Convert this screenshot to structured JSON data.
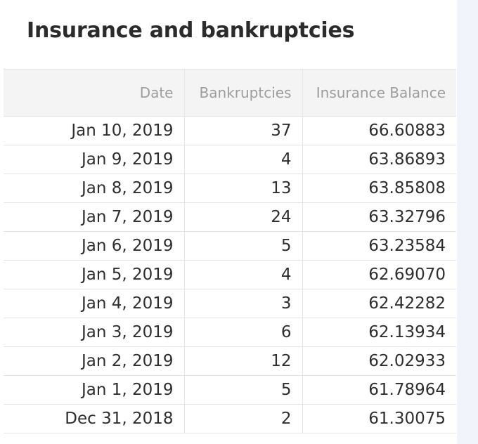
{
  "title": "Insurance and bankruptcies",
  "table": {
    "headers": [
      "Date",
      "Bankruptcies",
      "Insurance Balance"
    ],
    "rows": [
      {
        "date": "Jan 10, 2019",
        "bankruptcies": "37",
        "insurance_balance": "66.60883"
      },
      {
        "date": "Jan 9, 2019",
        "bankruptcies": "4",
        "insurance_balance": "63.86893"
      },
      {
        "date": "Jan 8, 2019",
        "bankruptcies": "13",
        "insurance_balance": "63.85808"
      },
      {
        "date": "Jan 7, 2019",
        "bankruptcies": "24",
        "insurance_balance": "63.32796"
      },
      {
        "date": "Jan 6, 2019",
        "bankruptcies": "5",
        "insurance_balance": "63.23584"
      },
      {
        "date": "Jan 5, 2019",
        "bankruptcies": "4",
        "insurance_balance": "62.69070"
      },
      {
        "date": "Jan 4, 2019",
        "bankruptcies": "3",
        "insurance_balance": "62.42282"
      },
      {
        "date": "Jan 3, 2019",
        "bankruptcies": "6",
        "insurance_balance": "62.13934"
      },
      {
        "date": "Jan 2, 2019",
        "bankruptcies": "12",
        "insurance_balance": "62.02933"
      },
      {
        "date": "Jan 1, 2019",
        "bankruptcies": "5",
        "insurance_balance": "61.78964"
      },
      {
        "date": "Dec 31, 2018",
        "bankruptcies": "2",
        "insurance_balance": "61.30075"
      }
    ]
  },
  "colors": {
    "header_background": "#f4f4f4",
    "header_text": "#9d9d9d",
    "cell_text": "#2e2e2e",
    "side_strip": "#f1f4fa"
  }
}
